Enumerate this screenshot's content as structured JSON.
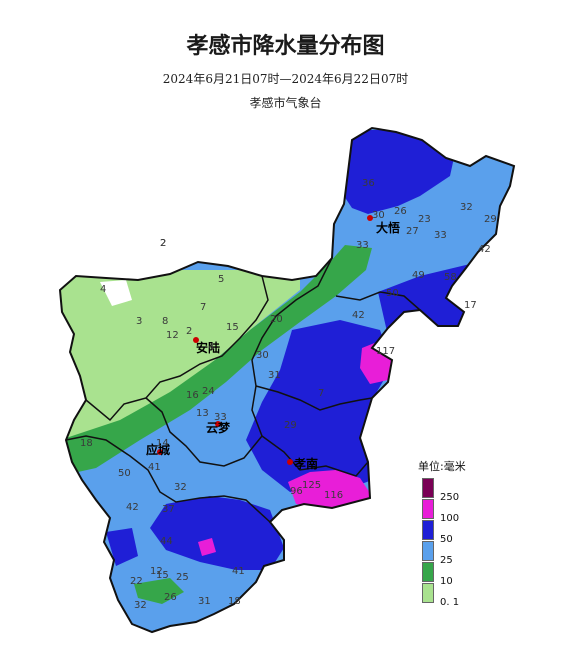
{
  "header": {
    "title": "孝感市降水量分布图",
    "subtitle": "2024年6月21日07时—2024年6月22日07时",
    "issuer": "孝感市气象台"
  },
  "legend": {
    "title": "单位:毫米",
    "levels": [
      {
        "label": "250",
        "color": "#7a0055"
      },
      {
        "label": "100",
        "color": "#e81ed8"
      },
      {
        "label": "50",
        "color": "#1f1fd6"
      },
      {
        "label": "25",
        "color": "#5aa0ec"
      },
      {
        "label": "10",
        "color": "#36a64a"
      },
      {
        "label": "0. 1",
        "color": "#a9e28f"
      }
    ]
  },
  "colors": {
    "extreme": "#7a0055",
    "heavy_rainstorm": "#e81ed8",
    "rainstorm": "#1f1fd6",
    "heavy_rain": "#5aa0ec",
    "moderate_rain": "#36a64a",
    "light_rain": "#a9e28f",
    "none": "#ffffff",
    "boundary": "#111111"
  },
  "cities": [
    {
      "name": "大悟"
    },
    {
      "name": "安陆"
    },
    {
      "name": "云梦"
    },
    {
      "name": "应城"
    },
    {
      "name": "孝南"
    }
  ],
  "values": [
    "2",
    "4",
    "5",
    "7",
    "3",
    "8",
    "12",
    "2",
    "4",
    "24",
    "16",
    "13",
    "33",
    "18",
    "14",
    "41",
    "50",
    "32",
    "37",
    "42",
    "44",
    "15",
    "12",
    "25",
    "26",
    "22",
    "31",
    "41",
    "32",
    "18",
    "36",
    "30",
    "26",
    "33",
    "23",
    "27",
    "33",
    "32",
    "29",
    "42",
    "49",
    "50",
    "58",
    "17",
    "20",
    "15",
    "42",
    "30",
    "31",
    "29",
    "7",
    "125",
    "116",
    "96",
    "117",
    "2"
  ]
}
